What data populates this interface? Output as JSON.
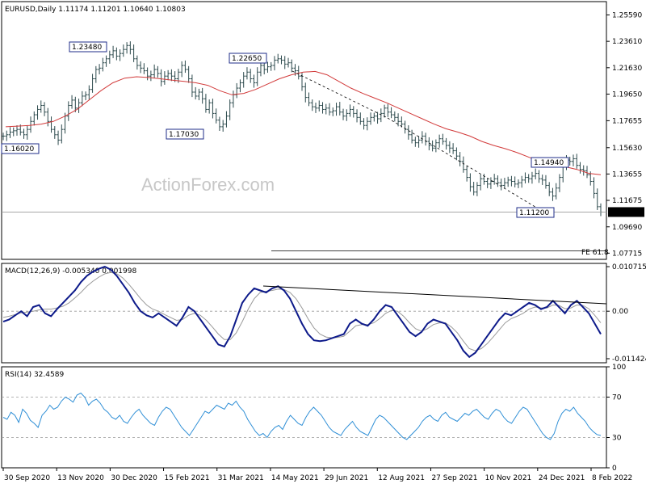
{
  "chart_data": [
    {
      "panel": "price",
      "type": "bar",
      "title": "EURUSD,Daily  1.11174 1.11201 1.10640 1.10803",
      "watermark": "ActionForex.com",
      "ylim": [
        1.0725,
        1.2659
      ],
      "y_ticks": [
        "1.25590",
        "1.23610",
        "1.21630",
        "1.19650",
        "1.17655",
        "1.15630",
        "1.13655",
        "1.11675",
        "1.09690",
        "1.07715"
      ],
      "current_price": "1.10803",
      "series": [
        {
          "name": "",
          "values": [
            1.165,
            1.166,
            1.168,
            1.169,
            1.17,
            1.168,
            1.166,
            1.17,
            1.176,
            1.181,
            1.185,
            1.188,
            1.183,
            1.176,
            1.17,
            1.166,
            1.162,
            1.17,
            1.18,
            1.188,
            1.192,
            1.186,
            1.19,
            1.195,
            1.196,
            1.2,
            1.208,
            1.215,
            1.216,
            1.22,
            1.223,
            1.226,
            1.229,
            1.225,
            1.227,
            1.23,
            1.233,
            1.23,
            1.223,
            1.218,
            1.216,
            1.214,
            1.21,
            1.211,
            1.215,
            1.212,
            1.206,
            1.21,
            1.212,
            1.21,
            1.208,
            1.213,
            1.218,
            1.215,
            1.208,
            1.198,
            1.195,
            1.198,
            1.193,
            1.185,
            1.19,
            1.182,
            1.177,
            1.172,
            1.174,
            1.18,
            1.19,
            1.196,
            1.201,
            1.205,
            1.21,
            1.213,
            1.208,
            1.205,
            1.213,
            1.218,
            1.215,
            1.217,
            1.218,
            1.222,
            1.223,
            1.222,
            1.219,
            1.22,
            1.216,
            1.214,
            1.21,
            1.202,
            1.194,
            1.19,
            1.187,
            1.186,
            1.188,
            1.185,
            1.186,
            1.183,
            1.184,
            1.187,
            1.183,
            1.18,
            1.182,
            1.185,
            1.182,
            1.179,
            1.176,
            1.173,
            1.176,
            1.179,
            1.18,
            1.178,
            1.182,
            1.186,
            1.183,
            1.181,
            1.179,
            1.176,
            1.174,
            1.17,
            1.166,
            1.162,
            1.16,
            1.162,
            1.165,
            1.161,
            1.158,
            1.156,
            1.16,
            1.163,
            1.161,
            1.158,
            1.156,
            1.154,
            1.15,
            1.146,
            1.14,
            1.134,
            1.127,
            1.123,
            1.128,
            1.133,
            1.131,
            1.129,
            1.131,
            1.133,
            1.13,
            1.128,
            1.13,
            1.132,
            1.131,
            1.129,
            1.13,
            1.132,
            1.134,
            1.133,
            1.135,
            1.137,
            1.133,
            1.132,
            1.128,
            1.123,
            1.12,
            1.126,
            1.134,
            1.142,
            1.147,
            1.146,
            1.148,
            1.143,
            1.14,
            1.139,
            1.136,
            1.131,
            1.122,
            1.112,
            1.108
          ]
        },
        {
          "name": "",
          "values": [
            1.172,
            1.1725,
            1.173,
            1.174,
            1.176,
            1.18,
            1.185,
            1.192,
            1.199,
            1.205,
            1.2085,
            1.2095,
            1.209,
            1.208,
            1.207,
            1.206,
            1.205,
            1.203,
            1.199,
            1.196,
            1.197,
            1.2,
            1.204,
            1.208,
            1.211,
            1.213,
            1.2135,
            1.211,
            1.206,
            1.201,
            1.197,
            1.1935,
            1.19,
            1.186,
            1.182,
            1.178,
            1.174,
            1.1705,
            1.168,
            1.165,
            1.161,
            1.158,
            1.1555,
            1.1525,
            1.149,
            1.146,
            1.1435,
            1.142,
            1.14,
            1.137,
            1.136
          ]
        }
      ],
      "annotations": [
        {
          "label": "1.23480",
          "value": 1.2348
        },
        {
          "label": "1.22650",
          "value": 1.2265
        },
        {
          "label": "1.17030",
          "value": 1.1703
        },
        {
          "label": "1.16020",
          "value": 1.1602
        },
        {
          "label": "1.14940",
          "value": 1.1494
        },
        {
          "label": "1.11200",
          "value": 1.112
        },
        {
          "label": "FE 61.8",
          "value": 1.0788
        }
      ],
      "support_level": 1.108,
      "fe_level": 1.0788
    },
    {
      "panel": "macd",
      "type": "line",
      "title": "MACD(12,26,9) -0.005340 0.001998",
      "ylim": [
        -0.0124,
        0.0115
      ],
      "y_ticks": [
        "0.010715",
        "0.00",
        "-0.011424"
      ],
      "series": [
        {
          "name": "",
          "values": [
            -0.0025,
            -0.002,
            -0.001,
            0.0,
            -0.0012,
            0.001,
            0.0015,
            -0.0005,
            -0.0012,
            0.0005,
            0.002,
            0.0035,
            0.005,
            0.007,
            0.0085,
            0.0095,
            0.0102,
            0.0107,
            0.01,
            0.0085,
            0.0065,
            0.0045,
            0.002,
            0.0,
            -0.001,
            -0.0015,
            -0.0005,
            -0.0015,
            -0.0025,
            -0.0035,
            -0.0015,
            0.001,
            0.0,
            -0.002,
            -0.004,
            -0.006,
            -0.008,
            -0.0085,
            -0.006,
            -0.002,
            0.002,
            0.004,
            0.0055,
            0.005,
            0.0045,
            0.0055,
            0.006,
            0.005,
            0.003,
            0.0,
            -0.003,
            -0.0055,
            -0.007,
            -0.0072,
            -0.007,
            -0.0065,
            -0.006,
            -0.0055,
            -0.003,
            -0.002,
            -0.003,
            -0.0035,
            -0.002,
            0.0,
            0.0015,
            0.001,
            -0.001,
            -0.003,
            -0.005,
            -0.006,
            -0.005,
            -0.003,
            -0.002,
            -0.0025,
            -0.003,
            -0.005,
            -0.007,
            -0.0095,
            -0.011,
            -0.01,
            -0.008,
            -0.006,
            -0.004,
            -0.002,
            -0.0005,
            -0.001,
            0.0,
            0.001,
            0.002,
            0.0015,
            0.0005,
            0.001,
            0.0025,
            0.001,
            -0.0005,
            0.0015,
            0.0025,
            0.001,
            -0.0005,
            -0.003,
            -0.0055
          ]
        },
        {
          "name": "",
          "values": [
            -0.0015,
            -0.0012,
            -0.0008,
            -0.0004,
            -0.0002,
            0.0,
            0.0003,
            0.0005,
            0.0005,
            0.0008,
            0.0012,
            0.002,
            0.0032,
            0.0045,
            0.006,
            0.0072,
            0.0082,
            0.009,
            0.0093,
            0.009,
            0.008,
            0.0065,
            0.0048,
            0.003,
            0.0015,
            0.0005,
            0.0,
            -0.0008,
            -0.0015,
            -0.0022,
            -0.002,
            -0.001,
            -0.0005,
            -0.001,
            -0.0022,
            -0.0038,
            -0.0055,
            -0.0068,
            -0.0068,
            -0.0052,
            -0.0025,
            0.0005,
            0.003,
            0.0045,
            0.0048,
            0.005,
            0.0053,
            0.0052,
            0.0045,
            0.003,
            0.0008,
            -0.0018,
            -0.004,
            -0.0055,
            -0.0062,
            -0.0064,
            -0.0063,
            -0.006,
            -0.0048,
            -0.0035,
            -0.0032,
            -0.0032,
            -0.0028,
            -0.0018,
            -0.0005,
            0.0002,
            0.0,
            -0.0012,
            -0.0028,
            -0.0042,
            -0.0048,
            -0.0042,
            -0.0032,
            -0.0028,
            -0.0028,
            -0.0038,
            -0.0052,
            -0.0072,
            -0.009,
            -0.0095,
            -0.009,
            -0.0078,
            -0.0062,
            -0.0045,
            -0.0028,
            -0.0018,
            -0.0012,
            -0.0005,
            0.0005,
            0.001,
            0.0008,
            0.0008,
            0.0015,
            0.0014,
            0.0006,
            0.0008,
            0.0015,
            0.0014,
            0.0006,
            -0.001,
            -0.0028
          ]
        }
      ]
    },
    {
      "panel": "rsi",
      "type": "line",
      "title": "RSI(14) 32.4589",
      "ylim": [
        0,
        100
      ],
      "y_ticks": [
        "100",
        "70",
        "30",
        "0"
      ],
      "levels": [
        70,
        30
      ],
      "series": [
        {
          "name": "",
          "values": [
            50,
            48,
            55,
            52,
            45,
            58,
            54,
            47,
            44,
            40,
            52,
            56,
            62,
            58,
            60,
            66,
            70,
            68,
            65,
            72,
            74,
            70,
            62,
            66,
            68,
            64,
            58,
            55,
            50,
            48,
            52,
            46,
            44,
            50,
            55,
            58,
            52,
            48,
            44,
            42,
            50,
            56,
            60,
            58,
            52,
            46,
            40,
            36,
            32,
            38,
            44,
            50,
            56,
            54,
            58,
            62,
            60,
            58,
            64,
            62,
            66,
            60,
            56,
            48,
            42,
            36,
            32,
            34,
            30,
            36,
            40,
            42,
            38,
            46,
            52,
            48,
            44,
            42,
            50,
            56,
            60,
            56,
            52,
            46,
            40,
            36,
            34,
            32,
            38,
            42,
            46,
            40,
            36,
            34,
            32,
            40,
            48,
            52,
            50,
            46,
            42,
            38,
            34,
            30,
            28,
            32,
            36,
            40,
            46,
            50,
            52,
            48,
            46,
            52,
            55,
            50,
            48,
            46,
            50,
            54,
            52,
            56,
            58,
            54,
            50,
            48,
            54,
            58,
            56,
            50,
            46,
            44,
            50,
            56,
            60,
            58,
            52,
            46,
            40,
            34,
            30,
            28,
            34,
            46,
            54,
            58,
            56,
            60,
            54,
            50,
            46,
            40,
            36,
            33,
            32
          ]
        }
      ]
    }
  ],
  "x_axis": {
    "labels": [
      "30 Sep 2020",
      "13 Nov 2020",
      "30 Dec 2020",
      "15 Feb 2021",
      "31 Mar 2021",
      "14 May 2021",
      "29 Jun 2021",
      "12 Aug 2021",
      "27 Sep 2021",
      "10 Nov 2021",
      "24 Dec 2021",
      "8 Feb 2022"
    ]
  },
  "colors": {
    "bars": "#2d4a4d",
    "ma": "#d23a3a",
    "macd_line": "#0d1a8a",
    "signal_line": "#9a9a9a",
    "rsi_line": "#2f8fd6",
    "watermark": "#c7c7c7",
    "label_box": "#1f2e8a",
    "trendline": "#000000"
  }
}
